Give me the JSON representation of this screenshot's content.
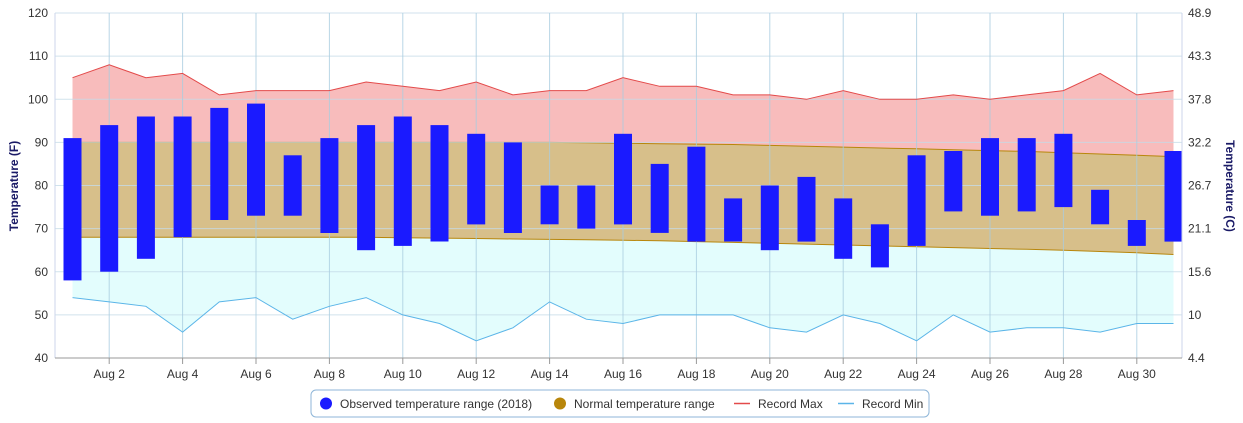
{
  "chart_data": {
    "type": "bar",
    "y_left": {
      "label": "Temperature (F)",
      "min": 40,
      "max": 120,
      "ticks": [
        40,
        50,
        60,
        70,
        80,
        90,
        100,
        110,
        120
      ]
    },
    "y_right": {
      "label": "Temperature (C)",
      "ticks": [
        "4.4",
        "10",
        "15.6",
        "21.1",
        "26.7",
        "32.2",
        "37.8",
        "43.3",
        "48.9"
      ]
    },
    "x_tick_labels": [
      "Aug 2",
      "Aug 4",
      "Aug 6",
      "Aug 8",
      "Aug 10",
      "Aug 12",
      "Aug 14",
      "Aug 16",
      "Aug 18",
      "Aug 20",
      "Aug 22",
      "Aug 24",
      "Aug 26",
      "Aug 28",
      "Aug 30"
    ],
    "days": [
      1,
      2,
      3,
      4,
      5,
      6,
      7,
      8,
      9,
      10,
      11,
      12,
      13,
      14,
      15,
      16,
      17,
      18,
      19,
      20,
      21,
      22,
      23,
      24,
      25,
      26,
      27,
      28,
      29,
      30,
      31
    ],
    "grid": true,
    "legend_position": "bottom",
    "series": [
      {
        "name": "Observed temperature range (2018)",
        "color": "#1a1aff",
        "low": [
          58,
          60,
          63,
          68,
          72,
          73,
          73,
          69,
          65,
          66,
          67,
          71,
          69,
          71,
          70,
          71,
          69,
          67,
          67,
          65,
          67,
          63,
          61,
          66,
          74,
          73,
          74,
          75,
          71,
          66,
          67
        ],
        "high": [
          91,
          94,
          96,
          96,
          98,
          99,
          87,
          91,
          94,
          96,
          94,
          92,
          90,
          80,
          80,
          92,
          85,
          89,
          77,
          80,
          82,
          77,
          71,
          87,
          88,
          91,
          91,
          92,
          79,
          72,
          88
        ]
      },
      {
        "name": "Normal temperature range",
        "color": "#b8860b",
        "fill": "#d7bf8a",
        "low": [
          68,
          68,
          68,
          68,
          68,
          68,
          68,
          68,
          68,
          67.9,
          67.8,
          67.7,
          67.6,
          67.5,
          67.4,
          67.3,
          67.2,
          67,
          66.8,
          66.6,
          66.4,
          66.2,
          66,
          65.8,
          65.6,
          65.4,
          65.2,
          65,
          64.7,
          64.4,
          64
        ],
        "high": [
          90,
          90,
          90,
          90,
          90,
          90,
          90,
          90,
          90,
          90,
          90,
          90,
          90,
          90,
          89.9,
          89.8,
          89.7,
          89.6,
          89.5,
          89.3,
          89.1,
          88.9,
          88.7,
          88.5,
          88.3,
          88.1,
          87.9,
          87.6,
          87.3,
          87,
          86.7
        ]
      },
      {
        "name": "Record Max",
        "color": "#e34a4a",
        "fill": "#f8bcbc",
        "values": [
          105,
          108,
          105,
          106,
          101,
          102,
          102,
          102,
          104,
          103,
          102,
          104,
          101,
          102,
          102,
          105,
          103,
          103,
          101,
          101,
          100,
          102,
          100,
          100,
          101,
          100,
          101,
          102,
          106,
          101,
          102
        ]
      },
      {
        "name": "Record Min",
        "color": "#5bb5e8",
        "fill": "#e3fdfd",
        "values": [
          54,
          53,
          52,
          46,
          53,
          54,
          49,
          52,
          54,
          50,
          48,
          44,
          47,
          53,
          49,
          48,
          50,
          50,
          50,
          47,
          46,
          50,
          48,
          44,
          50,
          46,
          47,
          47,
          46,
          48,
          48
        ]
      }
    ]
  }
}
